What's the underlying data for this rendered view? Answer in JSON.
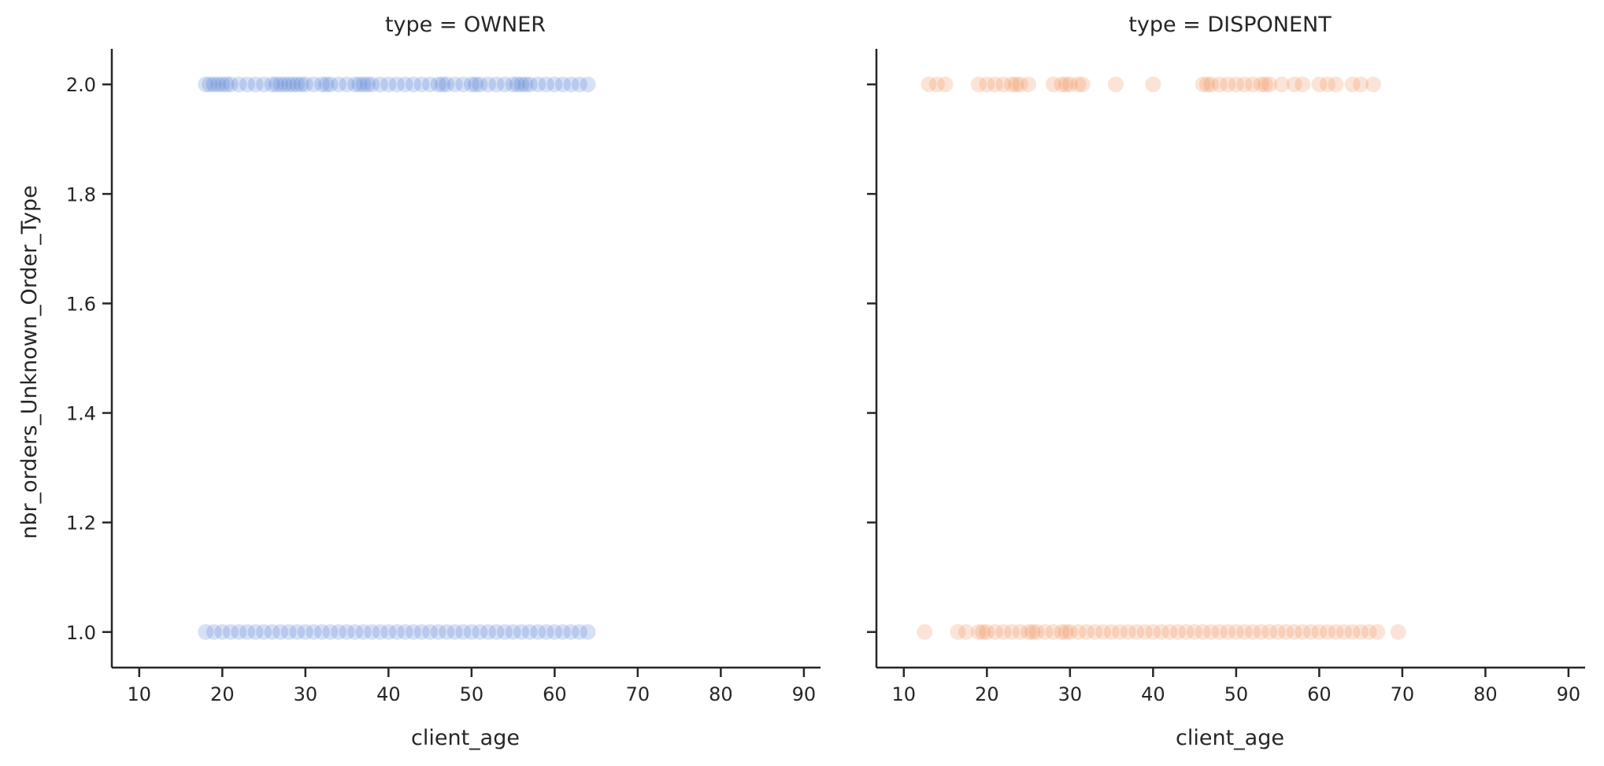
{
  "chart_data": [
    {
      "type": "scatter",
      "title": "type = OWNER",
      "xlabel": "client_age",
      "ylabel": "nbr_orders_Unknown_Order_Type",
      "xlim": [
        6.7,
        92
      ],
      "ylim": [
        0.935,
        2.065
      ],
      "xticks": [
        10,
        20,
        30,
        40,
        50,
        60,
        70,
        80,
        90
      ],
      "yticks": [
        1.0,
        1.2,
        1.4,
        1.6,
        1.8,
        2.0
      ],
      "grid": false,
      "color": "#4878d0",
      "alpha": 0.22,
      "series": [
        {
          "values": [
            {
              "y": 2,
              "x": [
                18,
                18.5,
                19,
                19.5,
                20,
                20.5,
                21,
                22,
                23,
                24,
                25,
                26,
                26.5,
                27,
                27.5,
                28,
                28.5,
                29,
                29.5,
                30,
                31,
                32,
                32.5,
                33,
                34,
                35,
                36,
                36.5,
                37,
                37.5,
                38,
                39,
                40,
                41,
                42,
                43,
                44,
                45,
                46,
                46.5,
                47,
                48,
                49,
                50,
                50.5,
                51,
                52,
                53,
                54,
                55,
                55.5,
                56,
                56.5,
                57,
                58,
                59,
                60,
                61,
                62,
                63,
                64
              ]
            },
            {
              "y": 1,
              "x": [
                18,
                19,
                20,
                21,
                22,
                23,
                24,
                25,
                26,
                27,
                28,
                29,
                30,
                31,
                32,
                33,
                34,
                35,
                36,
                37,
                38,
                39,
                40,
                41,
                42,
                43,
                44,
                45,
                46,
                47,
                48,
                49,
                50,
                51,
                52,
                53,
                54,
                55,
                56,
                57,
                58,
                59,
                60,
                61,
                62,
                63,
                64
              ]
            }
          ]
        }
      ]
    },
    {
      "type": "scatter",
      "title": "type = DISPONENT",
      "xlabel": "client_age",
      "ylabel": "",
      "xlim": [
        6.7,
        92
      ],
      "ylim": [
        0.935,
        2.065
      ],
      "xticks": [
        10,
        20,
        30,
        40,
        50,
        60,
        70,
        80,
        90
      ],
      "yticks": [
        1.0,
        1.2,
        1.4,
        1.6,
        1.8,
        2.0
      ],
      "grid": false,
      "color": "#ee854a",
      "alpha": 0.22,
      "series": [
        {
          "values": [
            {
              "y": 2,
              "x": [
                13,
                14,
                15,
                19,
                20,
                21,
                22,
                23,
                23.5,
                24,
                25,
                28,
                29,
                29.5,
                30,
                31,
                31.5,
                35.5,
                40,
                46,
                46.5,
                47,
                48,
                49,
                50,
                51,
                52,
                53,
                53.5,
                54,
                55.5,
                57,
                58,
                60,
                61,
                62,
                64,
                65,
                66.5
              ]
            },
            {
              "y": 1,
              "x": [
                12.5,
                16.5,
                17.5,
                19,
                19.5,
                20,
                21,
                22,
                23,
                24,
                25,
                25.5,
                26,
                27,
                28,
                29,
                29.5,
                30,
                31,
                32,
                33,
                34,
                35,
                36,
                37,
                38,
                39,
                40,
                41,
                42,
                43,
                44,
                45,
                46,
                47,
                48,
                49,
                50,
                51,
                52,
                53,
                54,
                55,
                56,
                57,
                58,
                59,
                60,
                61,
                62,
                63,
                64,
                65,
                66,
                67,
                69.5
              ]
            }
          ]
        }
      ]
    }
  ]
}
